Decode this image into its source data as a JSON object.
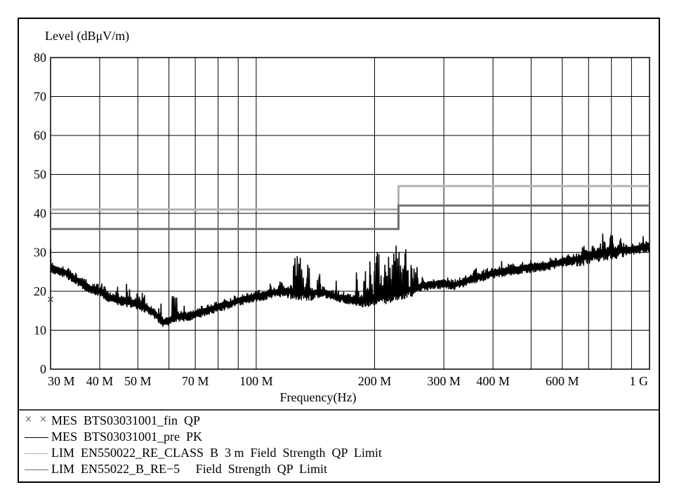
{
  "chart_data": {
    "type": "line",
    "title": "",
    "ylabel": "Level (dBμV/m)",
    "xlabel": "Frequency(Hz)",
    "x_scale": "log",
    "xlim": [
      30,
      1000
    ],
    "ylim": [
      0,
      80
    ],
    "grid": true,
    "y_ticks": [
      "0",
      "10",
      "20",
      "30",
      "40",
      "50",
      "60",
      "70",
      "80"
    ],
    "y_tick_values": [
      0,
      10,
      20,
      30,
      40,
      50,
      60,
      70,
      80
    ],
    "x_ticks": [
      "30 M",
      "40 M",
      "50 M",
      "70 M",
      "100 M",
      "200 M",
      "300 M",
      "400 M",
      "600 M",
      "1 G"
    ],
    "x_tick_values": [
      30,
      40,
      50,
      70,
      100,
      200,
      300,
      400,
      600,
      1000
    ],
    "x_grid_values": [
      30,
      40,
      50,
      60,
      70,
      80,
      90,
      100,
      200,
      300,
      400,
      500,
      600,
      700,
      800,
      900,
      1000
    ],
    "series": [
      {
        "name": "MES  BTS03031001_fin  QP",
        "kind": "markers",
        "color": "#555555",
        "points": [
          [
            30,
            18
          ],
          [
            225,
            33
          ],
          [
            510,
            28
          ]
        ]
      },
      {
        "name": "MES  BTS03031001_pre  PK",
        "kind": "line",
        "color": "#000000",
        "points": [
          [
            30,
            26.5
          ],
          [
            33,
            25
          ],
          [
            36,
            22.5
          ],
          [
            38,
            21
          ],
          [
            40,
            20.5
          ],
          [
            42,
            19
          ],
          [
            45,
            18
          ],
          [
            48,
            17.5
          ],
          [
            50,
            17
          ],
          [
            53,
            16
          ],
          [
            56,
            14
          ],
          [
            58,
            12.5
          ],
          [
            60,
            13
          ],
          [
            63,
            14
          ],
          [
            66,
            14
          ],
          [
            70,
            14.5
          ],
          [
            75,
            15.5
          ],
          [
            80,
            16.5
          ],
          [
            85,
            17
          ],
          [
            90,
            18
          ],
          [
            95,
            18.5
          ],
          [
            100,
            19
          ],
          [
            110,
            20
          ],
          [
            120,
            20.5
          ],
          [
            130,
            20
          ],
          [
            140,
            20
          ],
          [
            150,
            20
          ],
          [
            160,
            19
          ],
          [
            170,
            18.5
          ],
          [
            180,
            18
          ],
          [
            190,
            18
          ],
          [
            200,
            18.5
          ],
          [
            210,
            19
          ],
          [
            220,
            19.5
          ],
          [
            230,
            20
          ],
          [
            250,
            21
          ],
          [
            270,
            22
          ],
          [
            300,
            22.5
          ],
          [
            320,
            22
          ],
          [
            350,
            23.5
          ],
          [
            400,
            25
          ],
          [
            450,
            26
          ],
          [
            500,
            26.5
          ],
          [
            550,
            27
          ],
          [
            600,
            28
          ],
          [
            650,
            28.5
          ],
          [
            700,
            29.5
          ],
          [
            750,
            30
          ],
          [
            800,
            30.5
          ],
          [
            850,
            31
          ],
          [
            900,
            31
          ],
          [
            950,
            31.5
          ],
          [
            1000,
            32
          ]
        ],
        "peaks": [
          [
            41,
            25
          ],
          [
            44,
            24
          ],
          [
            47,
            23
          ],
          [
            50,
            25
          ],
          [
            52,
            24
          ],
          [
            57,
            18
          ],
          [
            62,
            22
          ],
          [
            66,
            18
          ],
          [
            74,
            17
          ],
          [
            84,
            20
          ],
          [
            92,
            20
          ],
          [
            100,
            22
          ],
          [
            108,
            23.5
          ],
          [
            115,
            25
          ],
          [
            126,
            31
          ],
          [
            130,
            32
          ],
          [
            135,
            29
          ],
          [
            145,
            27
          ],
          [
            160,
            23
          ],
          [
            180,
            25
          ],
          [
            190,
            27
          ],
          [
            195,
            29
          ],
          [
            200,
            30
          ],
          [
            205,
            31.5
          ],
          [
            210,
            28
          ],
          [
            215,
            34
          ],
          [
            220,
            31
          ],
          [
            225,
            35
          ],
          [
            230,
            33
          ],
          [
            235,
            32
          ],
          [
            240,
            33
          ],
          [
            248,
            30
          ],
          [
            255,
            28
          ],
          [
            265,
            26
          ],
          [
            285,
            24
          ],
          [
            330,
            26
          ],
          [
            360,
            30
          ],
          [
            420,
            28
          ],
          [
            500,
            29.5
          ],
          [
            560,
            30
          ],
          [
            620,
            32
          ],
          [
            680,
            33
          ],
          [
            720,
            34
          ],
          [
            760,
            35
          ],
          [
            800,
            35.5
          ],
          [
            850,
            35
          ],
          [
            900,
            34
          ],
          [
            960,
            35.5
          ],
          [
            1000,
            33
          ]
        ]
      },
      {
        "name": "LIM  EN550022_RE_CLASS  B  3 m  Field  Strength  QP  Limit",
        "kind": "step",
        "color": "#b3b3b3",
        "points": [
          [
            30,
            41
          ],
          [
            230,
            41
          ],
          [
            230,
            47
          ],
          [
            1000,
            47
          ]
        ]
      },
      {
        "name": "LIM  EN55022_B_RE−5     Field  Strength  QP  Limit",
        "kind": "step",
        "color": "#707070",
        "points": [
          [
            30,
            36
          ],
          [
            230,
            36
          ],
          [
            230,
            42
          ],
          [
            1000,
            42
          ]
        ]
      }
    ]
  }
}
